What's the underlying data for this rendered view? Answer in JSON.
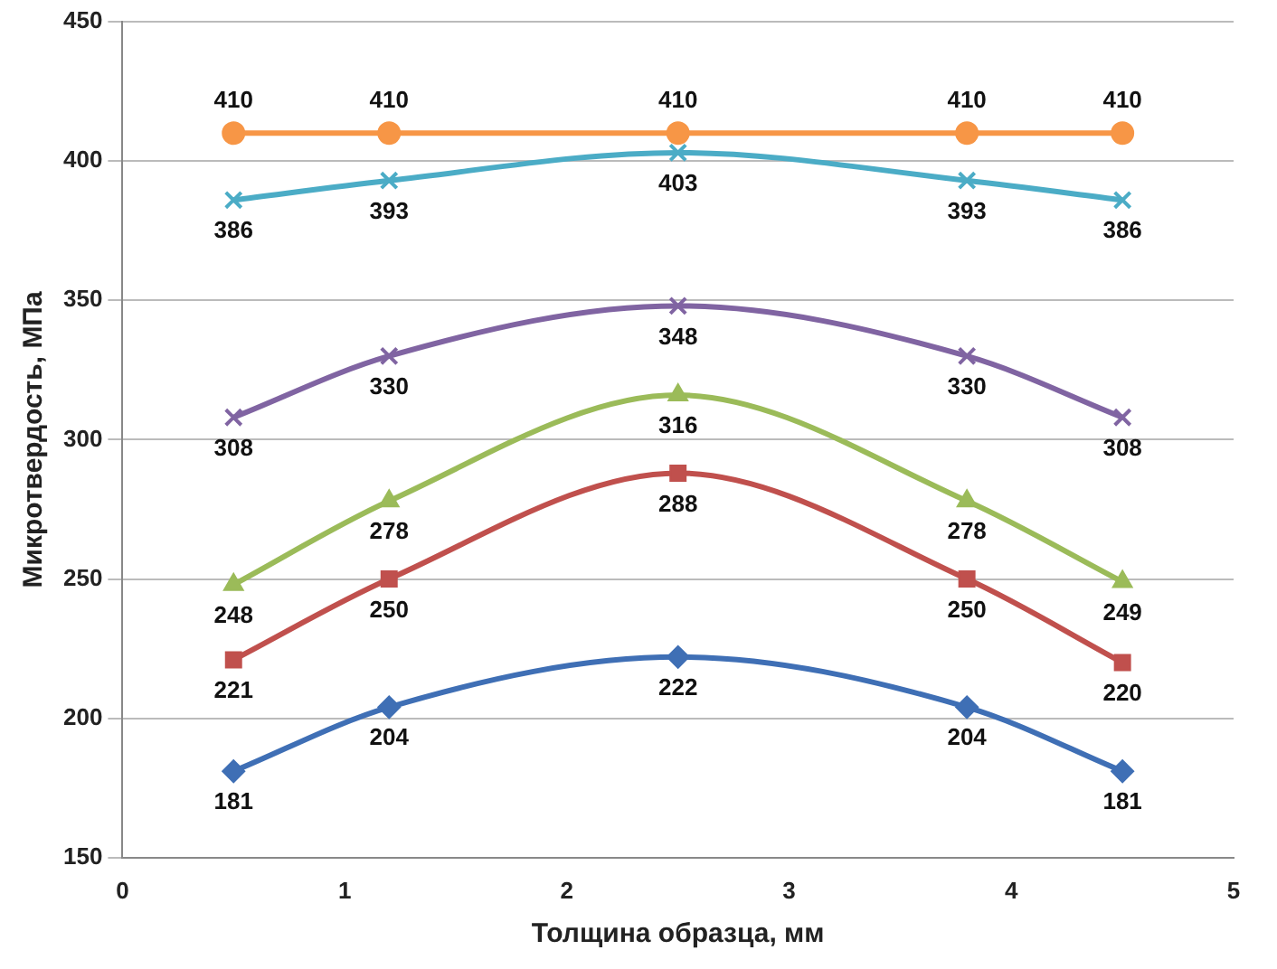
{
  "chart_data": {
    "type": "line",
    "xlabel": "Толщина образца, мм",
    "ylabel": "Микротвердость, МПа",
    "x": [
      0.5,
      1.2,
      2.5,
      3.8,
      4.5
    ],
    "series": [
      {
        "color": "#3f6fb5",
        "marker": "diamond",
        "values": [
          181,
          204,
          222,
          204,
          181
        ]
      },
      {
        "color": "#c0504d",
        "marker": "square",
        "values": [
          221,
          250,
          288,
          250,
          220
        ]
      },
      {
        "color": "#9bbb59",
        "marker": "triangle",
        "values": [
          248,
          278,
          316,
          278,
          249
        ]
      },
      {
        "color": "#8064a2",
        "marker": "cross",
        "values": [
          308,
          330,
          348,
          330,
          308
        ]
      },
      {
        "color": "#4bacc6",
        "marker": "cross",
        "values": [
          386,
          393,
          403,
          393,
          386
        ]
      },
      {
        "color": "#f79646",
        "marker": "circle",
        "values": [
          410,
          410,
          410,
          410,
          410
        ]
      }
    ],
    "xlim": [
      0,
      5
    ],
    "xticks": [
      0,
      1,
      2,
      3,
      4,
      5
    ],
    "ylim": [
      150,
      450
    ],
    "yticks": [
      150,
      200,
      250,
      300,
      350,
      400,
      450
    ],
    "grid": "y",
    "legend": false,
    "data_labels": true,
    "line_style": "solid"
  }
}
